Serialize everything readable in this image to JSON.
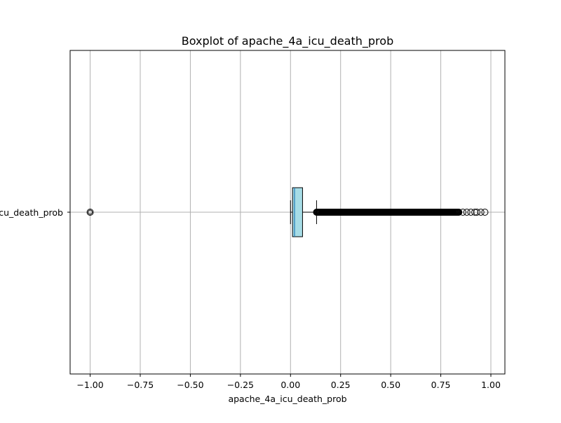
{
  "chart_data": {
    "type": "boxplot",
    "orientation": "horizontal",
    "title": "Boxplot of apache_4a_icu_death_prob",
    "xlabel": "apache_4a_icu_death_prob",
    "ylabel": "",
    "category_label": "apache_4a_icu_death_prob",
    "xlim": [
      -1.1,
      1.07
    ],
    "xticks": [
      -1.0,
      -0.75,
      -0.5,
      -0.25,
      0.0,
      0.25,
      0.5,
      0.75,
      1.0
    ],
    "xtick_labels": [
      "−1.00",
      "−0.75",
      "−0.50",
      "−0.25",
      "0.00",
      "0.25",
      "0.50",
      "0.75",
      "1.00"
    ],
    "grid": true,
    "box": {
      "whisker_low": 0.0,
      "q1": 0.01,
      "median": 0.02,
      "q3": 0.06,
      "whisker_high": 0.13
    },
    "outliers": {
      "low_values": [
        -1.0
      ],
      "high_min": 0.13,
      "high_dense_until": 0.84,
      "high_sparse": [
        0.86,
        0.88,
        0.9,
        0.92,
        0.93,
        0.95,
        0.97
      ]
    },
    "colors": {
      "box_fill": "#a6dce6",
      "median_line": "#1f77b4",
      "grid": "#b0b0b0"
    }
  }
}
